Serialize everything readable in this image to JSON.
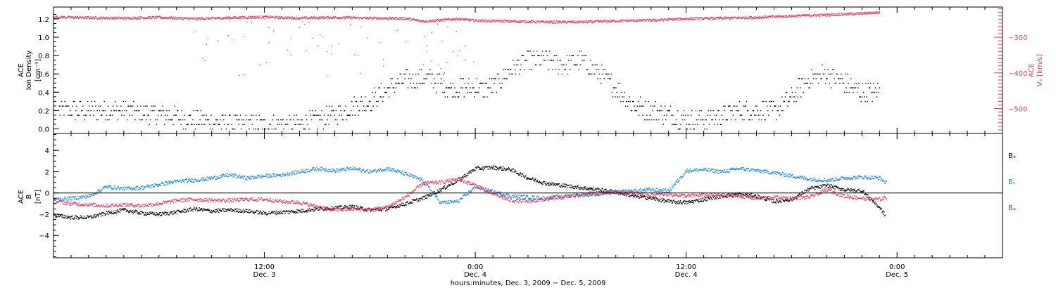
{
  "colors": {
    "axis": "#000000",
    "density": "#000000",
    "vx": "#e8375f",
    "bx": "#000000",
    "by": "#1e88e5",
    "bz": "#e8375f"
  },
  "x_axis": {
    "title": "hours:minutes, Dec.  3, 2009 − Dec.  5, 2009",
    "major_ticks": [
      {
        "hour": 12,
        "time": "12:00",
        "date": "Dec. 3"
      },
      {
        "hour": 24,
        "time": "0:00",
        "date": "Dec. 4"
      },
      {
        "hour": 36,
        "time": "12:00",
        "date": "Dec. 4"
      },
      {
        "hour": 48,
        "time": "0:00",
        "date": "Dec. 5"
      }
    ]
  },
  "chart_data": [
    {
      "type": "scatter",
      "panel": "top",
      "ylabel_lines": [
        "ACE",
        "Ion Density"
      ],
      "yunit": "[cm⁻³]",
      "ylim": [
        -0.05,
        1.33
      ],
      "yticks": [
        "0.0",
        "0.2",
        "0.4",
        "0.6",
        "0.8",
        "1.0",
        "1.2"
      ],
      "right_axis": {
        "label_lines": [
          "ACE",
          "Vₓ [km/s]"
        ],
        "ylim": [
          -570,
          -215
        ],
        "yticks": [
          "−300",
          "−400",
          "−500"
        ]
      },
      "xlim_hours": [
        0,
        54
      ],
      "series": [
        {
          "axis": "left",
          "color_key": "density",
          "style": "quantized",
          "points": [
            [
              0.3,
              0.2
            ],
            [
              2,
              0.2
            ],
            [
              4,
              0.2
            ],
            [
              6,
              0.15
            ],
            [
              8,
              0.1
            ],
            [
              10,
              0.05
            ],
            [
              12,
              0.05
            ],
            [
              13.5,
              0.05
            ],
            [
              15,
              0.1
            ],
            [
              16.5,
              0.2
            ],
            [
              18,
              0.3
            ],
            [
              19.5,
              0.5
            ],
            [
              20.5,
              0.55
            ],
            [
              21.5,
              0.55
            ],
            [
              22.5,
              0.45
            ],
            [
              23.5,
              0.45
            ],
            [
              25,
              0.45
            ],
            [
              26,
              0.65
            ],
            [
              27,
              0.75
            ],
            [
              28,
              0.75
            ],
            [
              29,
              0.7
            ],
            [
              30,
              0.75
            ],
            [
              31,
              0.6
            ],
            [
              32,
              0.45
            ],
            [
              33,
              0.25
            ],
            [
              34,
              0.2
            ],
            [
              35,
              0.15
            ],
            [
              36,
              0.1
            ],
            [
              37,
              0.1
            ],
            [
              38,
              0.15
            ],
            [
              39,
              0.2
            ],
            [
              40,
              0.2
            ],
            [
              41,
              0.2
            ],
            [
              42,
              0.35
            ],
            [
              43,
              0.55
            ],
            [
              44,
              0.6
            ],
            [
              45,
              0.5
            ],
            [
              46,
              0.4
            ],
            [
              47,
              0.4
            ]
          ]
        },
        {
          "axis": "right",
          "color_key": "vx",
          "style": "dense",
          "points": [
            [
              0,
              -243
            ],
            [
              2,
              -245
            ],
            [
              4,
              -246
            ],
            [
              6,
              -244
            ],
            [
              8,
              -248
            ],
            [
              10,
              -245
            ],
            [
              12,
              -243
            ],
            [
              14,
              -246
            ],
            [
              16,
              -244
            ],
            [
              18,
              -246
            ],
            [
              20,
              -247
            ],
            [
              21,
              -255
            ],
            [
              22,
              -252
            ],
            [
              23,
              -248
            ],
            [
              24,
              -253
            ],
            [
              26,
              -255
            ],
            [
              28,
              -257
            ],
            [
              30,
              -257
            ],
            [
              32,
              -254
            ],
            [
              34,
              -252
            ],
            [
              36,
              -248
            ],
            [
              38,
              -246
            ],
            [
              40,
              -244
            ],
            [
              42,
              -240
            ],
            [
              44,
              -237
            ],
            [
              46,
              -233
            ],
            [
              47,
              -230
            ]
          ]
        }
      ]
    },
    {
      "type": "scatter",
      "panel": "bottom",
      "ylabel_lines": [
        "ACE",
        "B"
      ],
      "yunit": "[nT]",
      "ylim": [
        -6.1,
        5.6
      ],
      "yticks": [
        "−4",
        "−2",
        "0",
        "2",
        "4"
      ],
      "xlim_hours": [
        0,
        54
      ],
      "legend_position": "right",
      "series": [
        {
          "name": "Bₓ",
          "color_key": "bx",
          "points": [
            [
              0,
              -2.1
            ],
            [
              1,
              -2.3
            ],
            [
              2,
              -2.3
            ],
            [
              3,
              -1.9
            ],
            [
              4,
              -1.6
            ],
            [
              5,
              -1.9
            ],
            [
              6,
              -2.0
            ],
            [
              7,
              -1.8
            ],
            [
              8,
              -1.5
            ],
            [
              9,
              -1.7
            ],
            [
              10,
              -1.6
            ],
            [
              11,
              -1.7
            ],
            [
              12,
              -1.9
            ],
            [
              13,
              -1.8
            ],
            [
              14,
              -1.7
            ],
            [
              15,
              -1.5
            ],
            [
              16,
              -1.4
            ],
            [
              17,
              -1.3
            ],
            [
              18,
              -1.6
            ],
            [
              19,
              -1.5
            ],
            [
              20,
              -1.0
            ],
            [
              21,
              -0.5
            ],
            [
              22,
              0.3
            ],
            [
              23,
              1.2
            ],
            [
              24,
              2.3
            ],
            [
              25,
              2.4
            ],
            [
              26,
              2.2
            ],
            [
              27,
              1.4
            ],
            [
              28,
              0.9
            ],
            [
              29,
              0.7
            ],
            [
              30,
              0.5
            ],
            [
              31,
              0.3
            ],
            [
              32,
              0.1
            ],
            [
              33,
              -0.3
            ],
            [
              34,
              -0.5
            ],
            [
              35,
              -0.8
            ],
            [
              36,
              -0.9
            ],
            [
              37,
              -0.6
            ],
            [
              38,
              -0.3
            ],
            [
              39,
              -0.1
            ],
            [
              40,
              -0.3
            ],
            [
              41,
              -0.8
            ],
            [
              42,
              -0.6
            ],
            [
              43,
              0.4
            ],
            [
              44,
              0.7
            ],
            [
              45,
              0.3
            ],
            [
              46,
              0.2
            ],
            [
              47,
              -1.4
            ],
            [
              47.3,
              -2.1
            ]
          ]
        },
        {
          "name": "Bᵧ",
          "color_key": "by",
          "points": [
            [
              0,
              -0.6
            ],
            [
              1,
              -0.5
            ],
            [
              2,
              -0.3
            ],
            [
              3,
              0.6
            ],
            [
              4,
              0.4
            ],
            [
              5,
              0.5
            ],
            [
              6,
              0.8
            ],
            [
              7,
              1.1
            ],
            [
              8,
              1.2
            ],
            [
              9,
              1.4
            ],
            [
              10,
              1.7
            ],
            [
              11,
              1.4
            ],
            [
              12,
              1.6
            ],
            [
              13,
              1.7
            ],
            [
              14,
              2.0
            ],
            [
              15,
              2.3
            ],
            [
              16,
              2.1
            ],
            [
              17,
              2.3
            ],
            [
              18,
              2.0
            ],
            [
              19,
              2.3
            ],
            [
              20,
              1.8
            ],
            [
              21,
              1.2
            ],
            [
              22,
              -0.9
            ],
            [
              23,
              -0.8
            ],
            [
              24,
              0.6
            ],
            [
              25,
              0.1
            ],
            [
              26,
              -0.3
            ],
            [
              27,
              -0.4
            ],
            [
              28,
              -0.5
            ],
            [
              29,
              -0.3
            ],
            [
              30,
              -0.2
            ],
            [
              31,
              -0.1
            ],
            [
              32,
              0.1
            ],
            [
              33,
              0.2
            ],
            [
              34,
              0.3
            ],
            [
              35,
              0.2
            ],
            [
              36,
              2.1
            ],
            [
              37,
              2.2
            ],
            [
              38,
              2.0
            ],
            [
              39,
              2.3
            ],
            [
              40,
              2.1
            ],
            [
              41,
              1.9
            ],
            [
              42,
              1.6
            ],
            [
              43,
              1.3
            ],
            [
              44,
              1.2
            ],
            [
              45,
              1.4
            ],
            [
              46,
              1.5
            ],
            [
              47,
              1.4
            ],
            [
              47.4,
              0.9
            ]
          ]
        },
        {
          "name": "Bᵩ",
          "color_key": "bz",
          "points": [
            [
              0,
              -0.8
            ],
            [
              1,
              -1.0
            ],
            [
              2,
              -1.1
            ],
            [
              3,
              -1.2
            ],
            [
              4,
              -1.1
            ],
            [
              5,
              -1.2
            ],
            [
              6,
              -1.0
            ],
            [
              7,
              -0.7
            ],
            [
              8,
              -0.6
            ],
            [
              9,
              -0.7
            ],
            [
              10,
              -0.7
            ],
            [
              11,
              -0.6
            ],
            [
              12,
              -0.6
            ],
            [
              13,
              -0.8
            ],
            [
              14,
              -0.9
            ],
            [
              15,
              -1.3
            ],
            [
              16,
              -1.6
            ],
            [
              17,
              -1.5
            ],
            [
              18,
              -1.6
            ],
            [
              19,
              -1.3
            ],
            [
              20,
              -0.4
            ],
            [
              21,
              0.9
            ],
            [
              22,
              1.0
            ],
            [
              23,
              1.3
            ],
            [
              24,
              0.7
            ],
            [
              25,
              -0.1
            ],
            [
              26,
              -0.7
            ],
            [
              27,
              -0.8
            ],
            [
              28,
              -0.6
            ],
            [
              29,
              -0.4
            ],
            [
              30,
              -0.1
            ],
            [
              31,
              0.0
            ],
            [
              32,
              0.1
            ],
            [
              33,
              0.0
            ],
            [
              34,
              -0.2
            ],
            [
              35,
              -0.1
            ],
            [
              36,
              -0.3
            ],
            [
              37,
              -0.2
            ],
            [
              38,
              -0.2
            ],
            [
              39,
              -0.3
            ],
            [
              40,
              -0.5
            ],
            [
              41,
              -0.4
            ],
            [
              42,
              -0.5
            ],
            [
              43,
              -0.4
            ],
            [
              44,
              0.3
            ],
            [
              45,
              -0.3
            ],
            [
              46,
              -0.5
            ],
            [
              47,
              -0.6
            ],
            [
              47.4,
              -0.4
            ]
          ]
        }
      ]
    }
  ]
}
